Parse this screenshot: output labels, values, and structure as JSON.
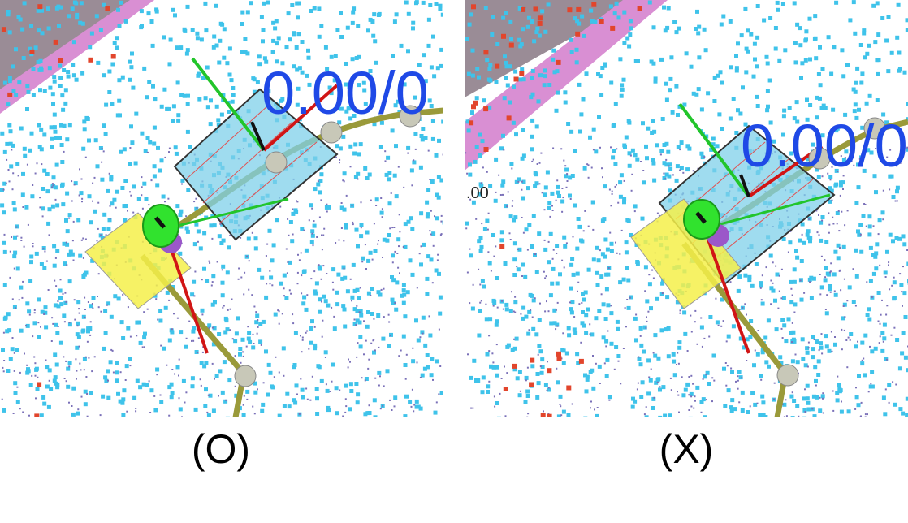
{
  "panels": [
    {
      "caption": "(O)",
      "overlay_text": "0.00/0",
      "side_text": ""
    },
    {
      "caption": "(X)",
      "overlay_text": "0.00/0",
      "side_text": ".00"
    }
  ],
  "colors": {
    "background": "#ffffff",
    "cyan_points": "#3fc3ea",
    "purple_points": "#7a70b8",
    "red_points": "#e2452c",
    "pink_band": "#d98fd3",
    "gray_region": "#9a8c96",
    "blue_box": "#7fd0ea",
    "yellow_square": "#f5f04a",
    "olive_path": "#9a9a3a",
    "green_axis": "#22c52b",
    "red_axis": "#d11515",
    "label_blue": "#1f49e6"
  }
}
